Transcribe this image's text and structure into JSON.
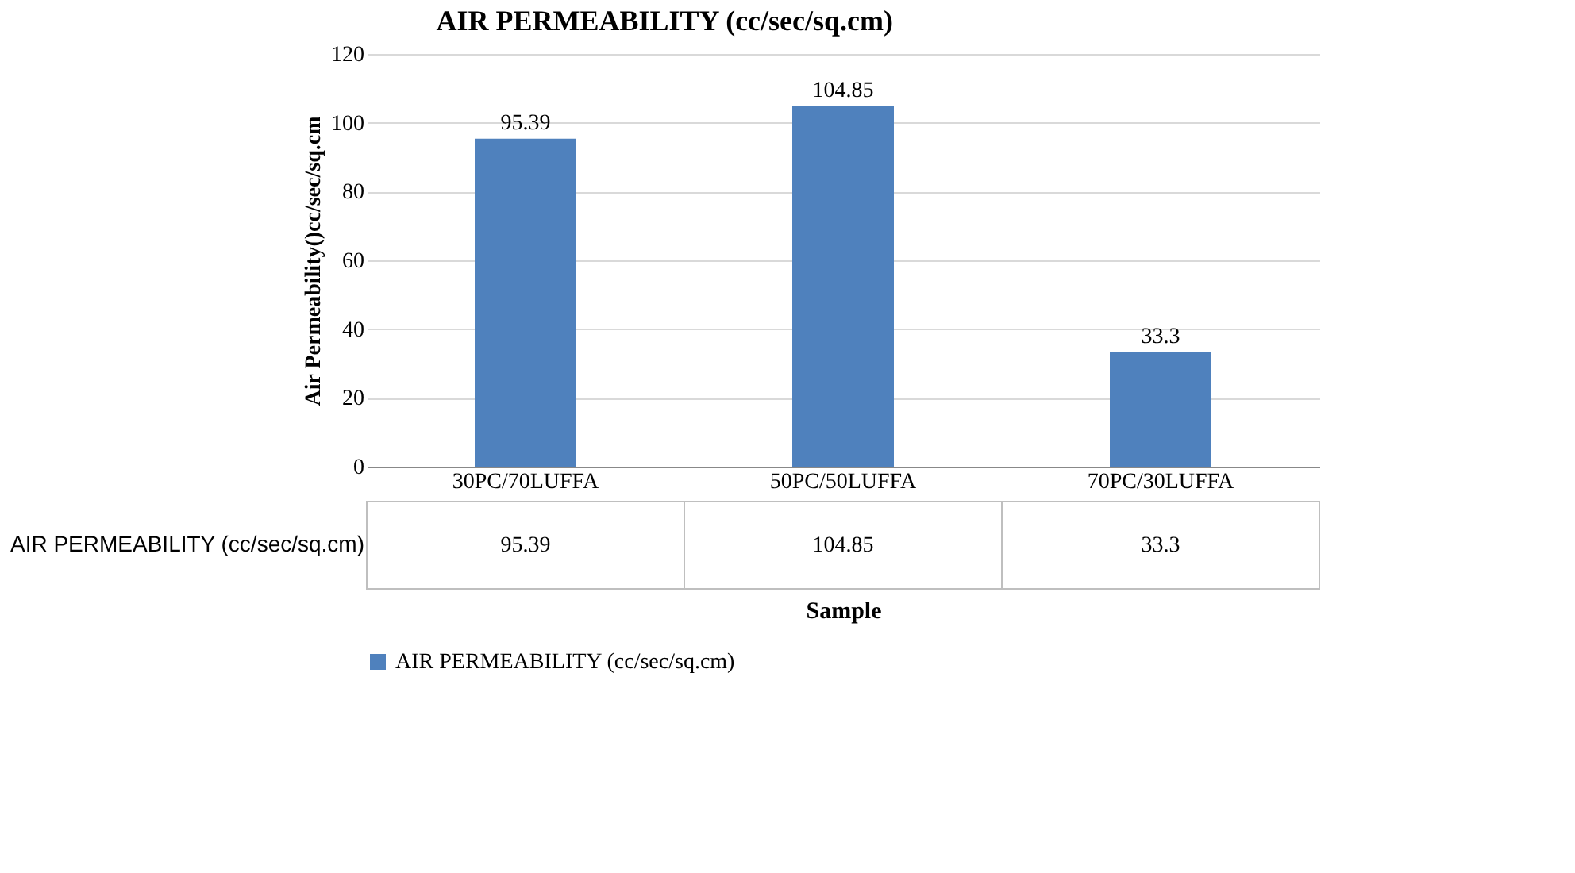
{
  "chart_data": {
    "type": "bar",
    "title": "AIR PERMEABILITY (cc/sec/sq.cm)",
    "xlabel": "Sample",
    "ylabel": "Air Permeability()cc/sec/sq.cm",
    "categories": [
      "30PC/70LUFFA",
      "50PC/50LUFFA",
      "70PC/30LUFFA"
    ],
    "series": [
      {
        "name": "AIR PERMEABILITY (cc/sec/sq.cm)",
        "color": "#4f81bd",
        "values": [
          95.39,
          104.85,
          33.3
        ],
        "value_labels": [
          "95.39",
          "104.85",
          "33.3"
        ]
      }
    ],
    "ylim": [
      0,
      120
    ],
    "yticks": [
      0,
      20,
      40,
      60,
      80,
      100,
      120
    ],
    "grid": "y",
    "annotations": [
      "95.39",
      "104.85",
      "33.3"
    ],
    "legend": "bottom"
  }
}
